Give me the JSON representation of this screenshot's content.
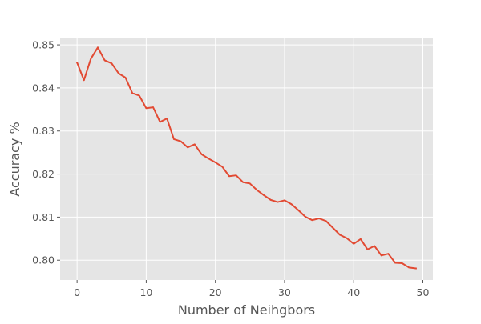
{
  "chart_data": {
    "type": "line",
    "title": "",
    "xlabel": "Number of Neihgbors",
    "ylabel": "Accuracy %",
    "xlim": [
      -2.45,
      51.45
    ],
    "ylim": [
      0.7954,
      0.8515
    ],
    "xticks": [
      0,
      10,
      20,
      30,
      40,
      50
    ],
    "xtick_labels": [
      "0",
      "10",
      "20",
      "30",
      "40",
      "50"
    ],
    "yticks": [
      0.8,
      0.81,
      0.82,
      0.83,
      0.84,
      0.85
    ],
    "ytick_labels": [
      "0.80",
      "0.81",
      "0.82",
      "0.83",
      "0.84",
      "0.85"
    ],
    "grid": true,
    "style": "ggplot",
    "colors": {
      "background": "#E5E5E5",
      "grid": "#FFFFFF",
      "line": "#E24A33",
      "text": "#555555"
    },
    "series": [
      {
        "x": [
          0,
          1,
          2,
          3,
          4,
          5,
          6,
          7,
          8,
          9,
          10,
          11,
          12,
          13,
          14,
          15,
          16,
          17,
          18,
          19,
          20,
          21,
          22,
          23,
          24,
          25,
          26,
          27,
          28,
          29,
          30,
          31,
          32,
          33,
          34,
          35,
          36,
          37,
          38,
          39,
          40,
          41,
          42,
          43,
          44,
          45,
          46,
          47,
          48,
          49
        ],
        "values": [
          0.8459,
          0.8418,
          0.8468,
          0.8494,
          0.8464,
          0.8457,
          0.8434,
          0.8424,
          0.8388,
          0.8382,
          0.8353,
          0.8355,
          0.8321,
          0.8329,
          0.8281,
          0.8276,
          0.8262,
          0.8269,
          0.8246,
          0.8236,
          0.8227,
          0.8217,
          0.8195,
          0.8197,
          0.8181,
          0.8178,
          0.8163,
          0.8151,
          0.814,
          0.8135,
          0.8139,
          0.813,
          0.8116,
          0.8101,
          0.8093,
          0.8097,
          0.8091,
          0.8075,
          0.8059,
          0.8051,
          0.8038,
          0.8049,
          0.8025,
          0.8033,
          0.8011,
          0.8015,
          0.7994,
          0.7993,
          0.7983,
          0.7981
        ]
      }
    ]
  }
}
